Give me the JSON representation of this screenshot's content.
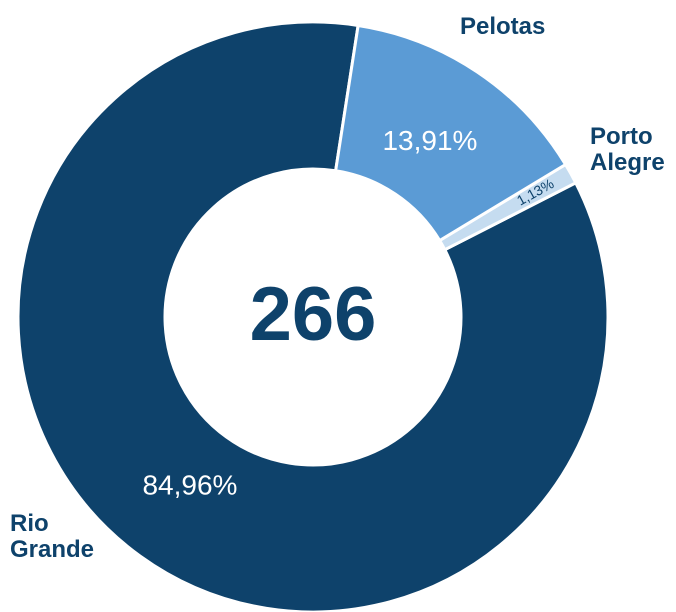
{
  "chart_data": {
    "type": "donut",
    "total": 266,
    "categories": [
      "Pelotas",
      "Porto Alegre",
      "Rio Grande"
    ],
    "values": [
      13.91,
      1.13,
      84.96
    ],
    "value_labels": [
      "13,91%",
      "1,13%",
      "84,96%"
    ],
    "colors": [
      "#5b9bd5",
      "#c5dcf0",
      "#0e426b"
    ]
  }
}
